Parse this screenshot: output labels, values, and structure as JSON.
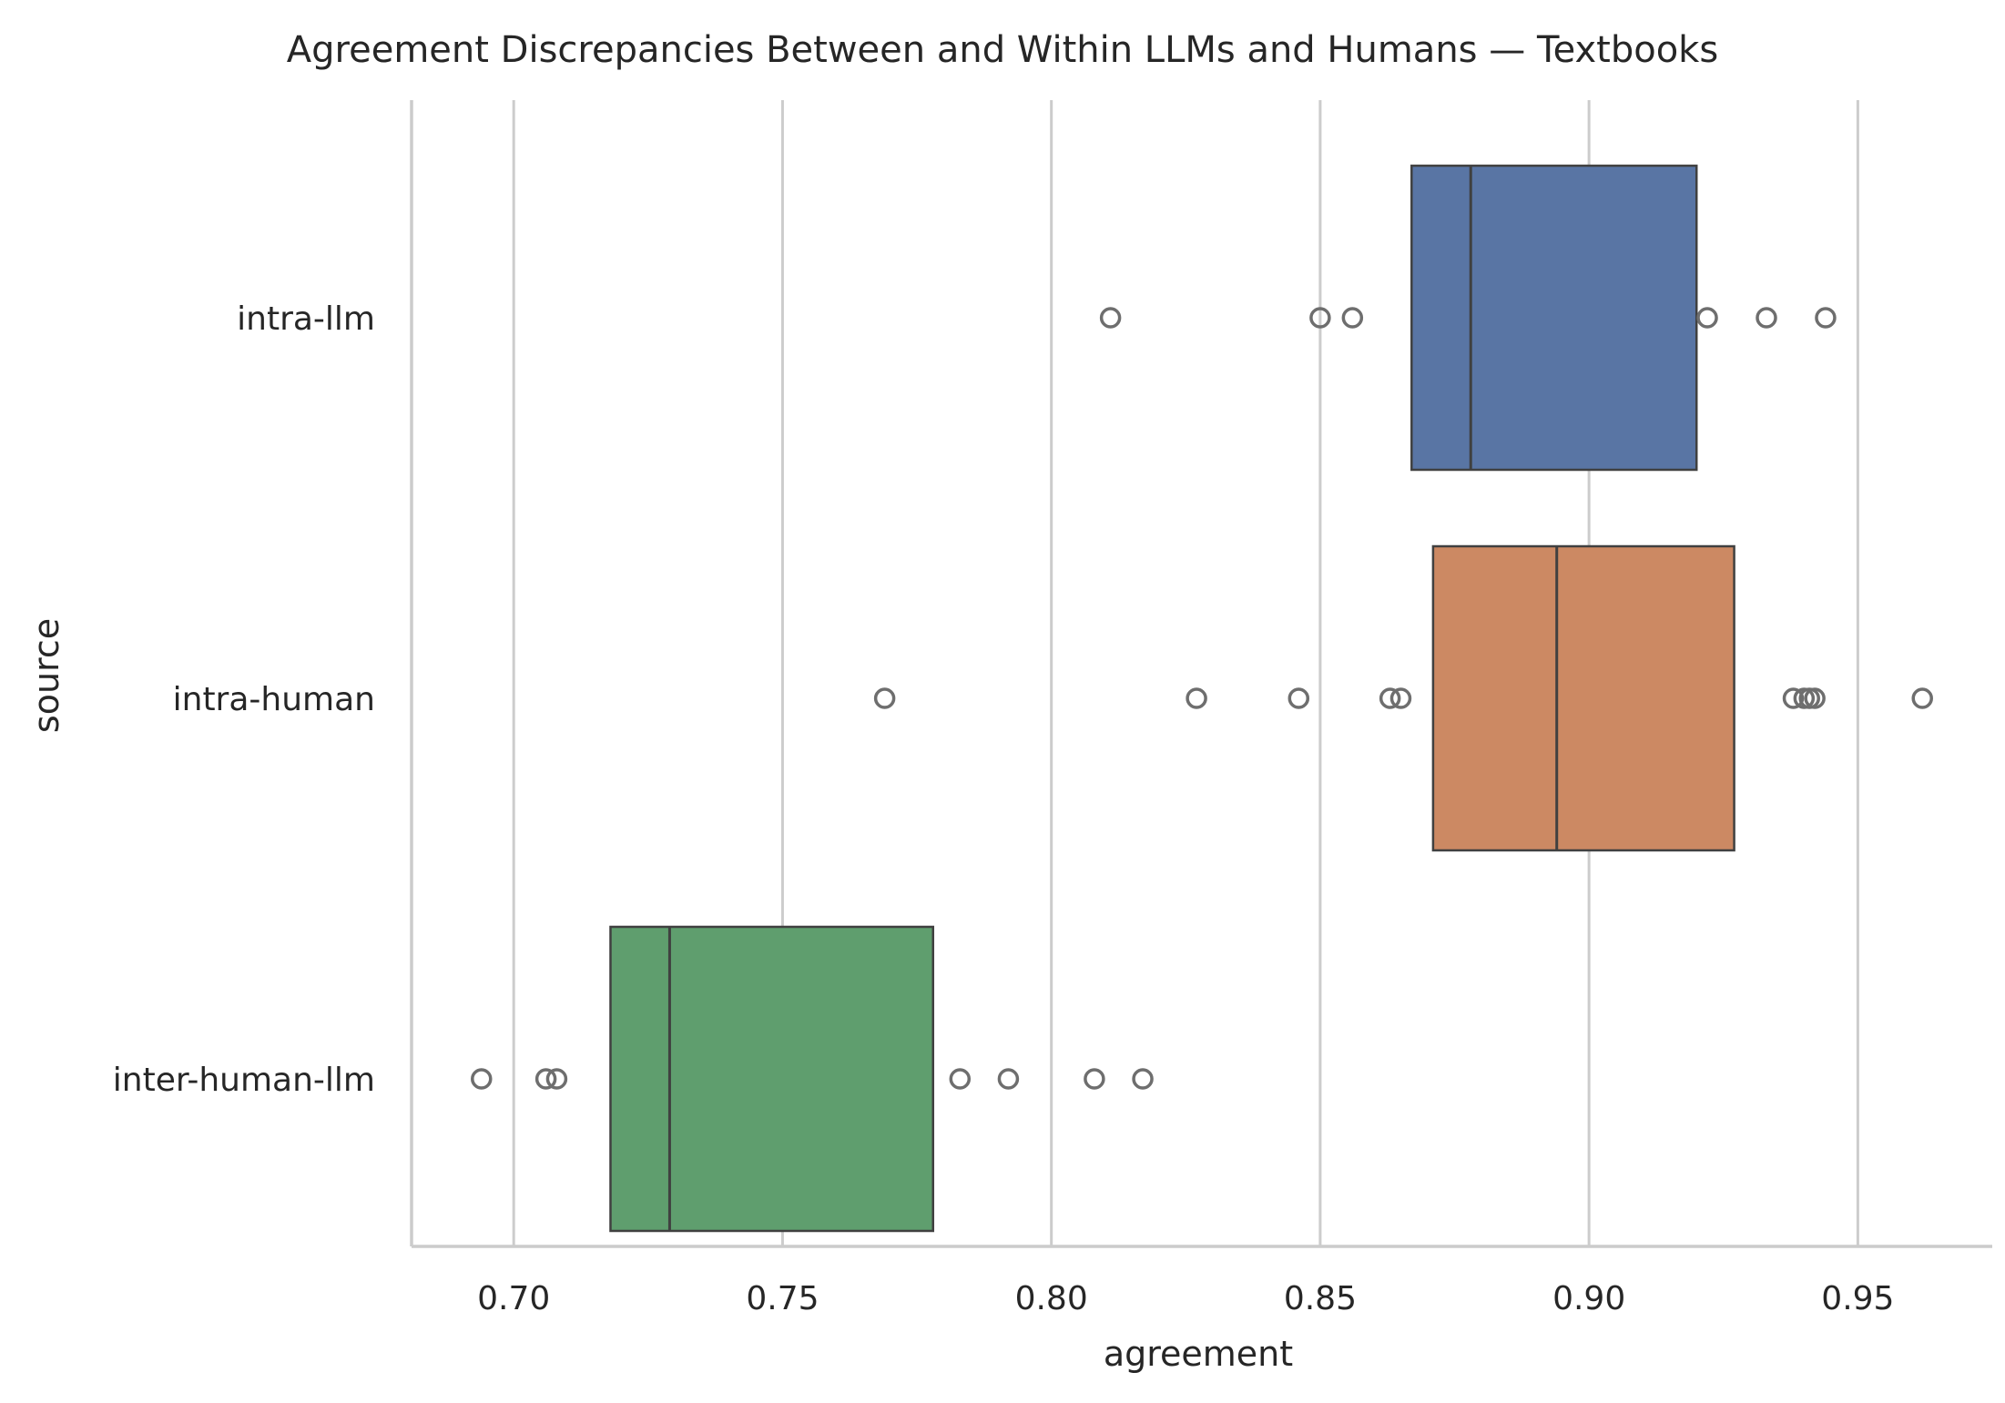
{
  "chart_data": {
    "type": "box",
    "orientation": "horizontal",
    "title": "Agreement Discrepancies Between and Within LLMs and Humans — Textbooks",
    "xlabel": "agreement",
    "ylabel": "source",
    "xlim": [
      0.681,
      0.975
    ],
    "xticks": [
      0.7,
      0.75,
      0.8,
      0.85,
      0.9,
      0.95
    ],
    "xtick_labels": [
      "0.70",
      "0.75",
      "0.80",
      "0.85",
      "0.90",
      "0.95"
    ],
    "grid": "vertical",
    "categories": [
      "intra-llm",
      "intra-human",
      "inter-human-llm"
    ],
    "boxes": [
      {
        "category": "intra-llm",
        "color": "#5975a4",
        "q1": 0.867,
        "median": 0.878,
        "q3": 0.92,
        "outliers": [
          0.811,
          0.85,
          0.856,
          0.922,
          0.933,
          0.944
        ]
      },
      {
        "category": "intra-human",
        "color": "#cc8963",
        "q1": 0.871,
        "median": 0.894,
        "q3": 0.927,
        "outliers": [
          0.769,
          0.827,
          0.846,
          0.863,
          0.865,
          0.938,
          0.94,
          0.941,
          0.942,
          0.962
        ]
      },
      {
        "category": "inter-human-llm",
        "color": "#5f9e6e",
        "q1": 0.718,
        "median": 0.729,
        "q3": 0.778,
        "outliers": [
          0.694,
          0.706,
          0.708,
          0.783,
          0.792,
          0.808,
          0.817
        ]
      }
    ],
    "colors": {
      "grid": "#cccccc",
      "spine": "#cccccc",
      "box_edge": "#404040",
      "outlier_edge": "#6e6e6e"
    }
  }
}
